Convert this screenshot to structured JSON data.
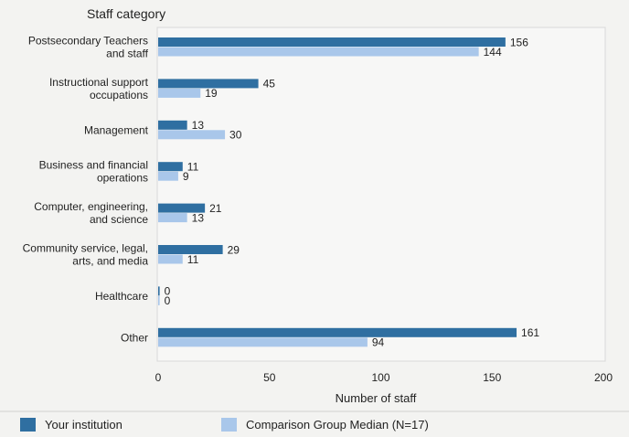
{
  "chart_data": {
    "type": "bar",
    "orientation": "horizontal",
    "category_axis_title": "Staff category",
    "xlabel": "Number of staff",
    "xlim": [
      0,
      200
    ],
    "xticks": [
      0,
      50,
      100,
      150,
      200
    ],
    "grid": false,
    "legend_position": "bottom",
    "categories": [
      [
        "Postsecondary Teachers",
        "and staff"
      ],
      [
        "Instructional support",
        "occupations"
      ],
      [
        "Management"
      ],
      [
        "Business and financial",
        "operations"
      ],
      [
        "Computer, engineering,",
        "and science"
      ],
      [
        "Community service, legal,",
        "arts, and media"
      ],
      [
        "Healthcare"
      ],
      [
        "Other"
      ]
    ],
    "series": [
      {
        "name": "Your institution",
        "color": "#2f6fa1",
        "values": [
          156,
          45,
          13,
          11,
          21,
          29,
          0,
          161
        ]
      },
      {
        "name": "Comparison Group Median (N=17)",
        "color": "#a9c7ea",
        "values": [
          144,
          19,
          30,
          9,
          13,
          11,
          0,
          94
        ]
      }
    ]
  }
}
